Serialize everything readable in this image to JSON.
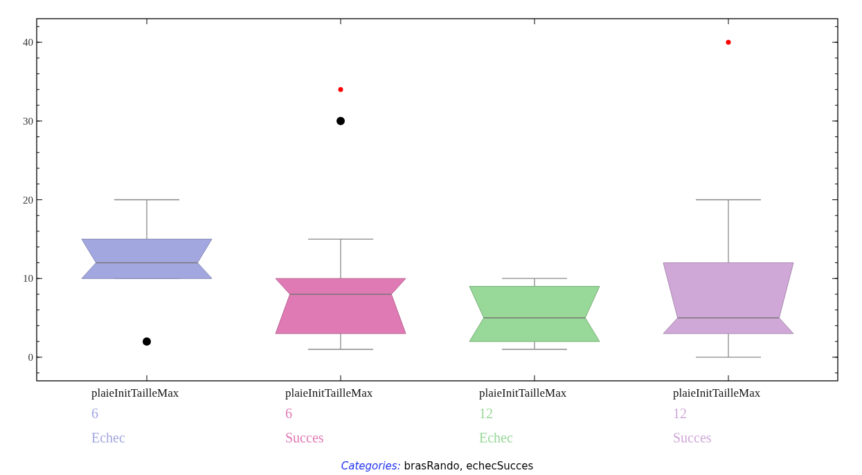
{
  "chart_data": {
    "type": "box",
    "categories": [
      "plaieInitTailleMax\n6\nEchec",
      "plaieInitTailleMax\n6\nSucces",
      "plaieInitTailleMax\n12\nEchec",
      "plaieInitTailleMax\n12\nSucces"
    ],
    "boxes": [
      {
        "low": 10,
        "q1": 10,
        "median": 12,
        "q3": 15,
        "high": 20,
        "outliers": [
          2
        ]
      },
      {
        "low": 1,
        "q1": 3,
        "median": 8,
        "q3": 10,
        "high": 15,
        "outliers": [
          30,
          34
        ]
      },
      {
        "low": 1,
        "q1": 2,
        "median": 5,
        "q3": 9,
        "high": 10
      },
      {
        "low": 0,
        "q1": 3,
        "median": 5,
        "q3": 12,
        "high": 20,
        "outliers": [
          40
        ]
      }
    ],
    "colors": [
      "#a3a7e0",
      "#e07ab4",
      "#98d898",
      "#d0a8d8"
    ],
    "ylim": [
      -3,
      43
    ],
    "yticks": [
      0,
      10,
      20,
      30,
      40
    ],
    "grid": false,
    "annotations": [
      "Categories: brasRando, echecSucces"
    ]
  }
}
